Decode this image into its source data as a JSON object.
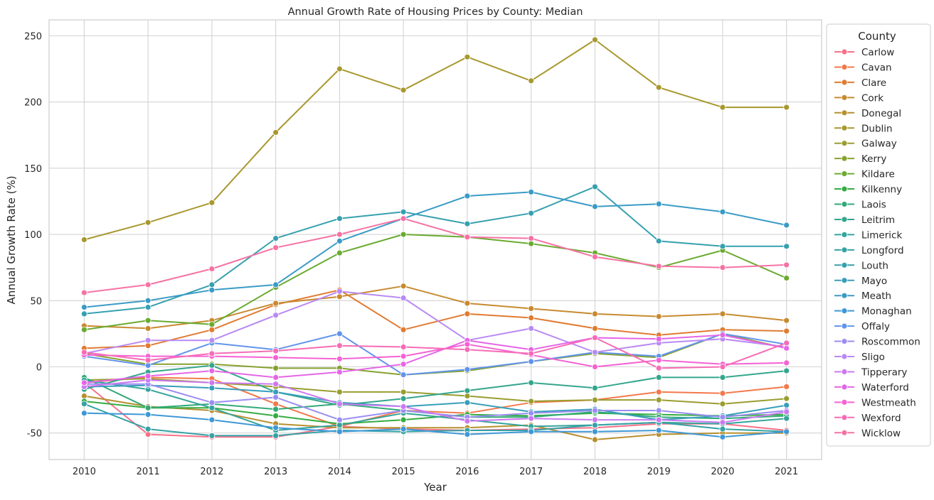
{
  "chart_data": {
    "type": "line",
    "title": "Annual Growth Rate of Housing Prices by County: Median",
    "xlabel": "Year",
    "ylabel": "Annual Growth Rate (%)",
    "x": [
      2010,
      2011,
      2012,
      2013,
      2014,
      2015,
      2016,
      2017,
      2018,
      2019,
      2020,
      2021
    ],
    "xlim": [
      2009.45,
      2021.55
    ],
    "ylim": [
      -70,
      262
    ],
    "yticks": [
      -50,
      0,
      50,
      100,
      150,
      200,
      250
    ],
    "grid": true,
    "legend": {
      "title": "County",
      "placement": "outside-right"
    },
    "series": [
      {
        "name": "Carlow",
        "color": "#f77189",
        "values": [
          -12,
          -51,
          -53,
          -53,
          -45,
          -47,
          -48,
          -47,
          -46,
          -43,
          -43,
          -48
        ]
      },
      {
        "name": "Cavan",
        "color": "#f3794b",
        "values": [
          -12,
          -8,
          -9,
          -28,
          -45,
          -33,
          -35,
          -27,
          -25,
          -19,
          -20,
          -15
        ]
      },
      {
        "name": "Clare",
        "color": "#e07b32",
        "values": [
          14,
          16,
          28,
          47,
          58,
          28,
          40,
          37,
          29,
          24,
          28,
          27
        ]
      },
      {
        "name": "Cork",
        "color": "#c88a30",
        "values": [
          31,
          29,
          35,
          48,
          53,
          61,
          48,
          44,
          40,
          38,
          40,
          35
        ]
      },
      {
        "name": "Donegal",
        "color": "#b7902f",
        "values": [
          -22,
          -30,
          -33,
          -43,
          -46,
          -46,
          -46,
          -44,
          -55,
          -51,
          -50,
          -50
        ]
      },
      {
        "name": "Dublin",
        "color": "#a8982f",
        "values": [
          96,
          109,
          124,
          177,
          225,
          209,
          234,
          216,
          247,
          211,
          196,
          196
        ]
      },
      {
        "name": "Galway",
        "color": "#9a9d30",
        "values": [
          -10,
          -9,
          -12,
          -15,
          -19,
          -19,
          -22,
          -26,
          -25,
          -25,
          -28,
          -24
        ]
      },
      {
        "name": "Kerry",
        "color": "#86a230",
        "values": [
          10,
          2,
          2,
          -1,
          -1,
          -6,
          -3,
          4,
          10,
          7,
          25,
          14
        ]
      },
      {
        "name": "Kildare",
        "color": "#6aab31",
        "values": [
          28,
          35,
          32,
          60,
          86,
          100,
          98,
          93,
          86,
          75,
          88,
          67
        ]
      },
      {
        "name": "Kilkenny",
        "color": "#35ac42",
        "values": [
          -26,
          -31,
          -31,
          -37,
          -43,
          -40,
          -36,
          -37,
          -35,
          -36,
          -37,
          -36
        ]
      },
      {
        "name": "Laois",
        "color": "#33a978",
        "values": [
          -8,
          -31,
          -28,
          -32,
          -28,
          -33,
          -38,
          -38,
          -34,
          -38,
          -39,
          -37
        ]
      },
      {
        "name": "Leitrim",
        "color": "#34a68d",
        "values": [
          -17,
          -4,
          1,
          -19,
          -29,
          -24,
          -18,
          -12,
          -16,
          -8,
          -8,
          -3
        ]
      },
      {
        "name": "Limerick",
        "color": "#35a49b",
        "values": [
          -10,
          -17,
          -31,
          -48,
          -44,
          -35,
          -40,
          -45,
          -44,
          -42,
          -43,
          -39
        ]
      },
      {
        "name": "Longford",
        "color": "#36a2a6",
        "values": [
          -28,
          -47,
          -52,
          -52,
          -48,
          -49,
          -48,
          -48,
          -44,
          -42,
          -47,
          -49
        ]
      },
      {
        "name": "Louth",
        "color": "#36a0af",
        "values": [
          40,
          45,
          62,
          97,
          112,
          117,
          108,
          116,
          136,
          95,
          91,
          91
        ]
      },
      {
        "name": "Mayo",
        "color": "#389eba",
        "values": [
          -15,
          -14,
          -16,
          -19,
          -27,
          -30,
          -27,
          -34,
          -32,
          -40,
          -37,
          -29
        ]
      },
      {
        "name": "Meath",
        "color": "#3a9bc6",
        "values": [
          45,
          50,
          58,
          62,
          95,
          112,
          129,
          132,
          121,
          123,
          117,
          107
        ]
      },
      {
        "name": "Monaghan",
        "color": "#3e98d6",
        "values": [
          -35,
          -36,
          -40,
          -46,
          -49,
          -47,
          -51,
          -49,
          -49,
          -48,
          -53,
          -49
        ]
      },
      {
        "name": "Offaly",
        "color": "#6294ec",
        "values": [
          8,
          1,
          18,
          13,
          25,
          -6,
          -2,
          4,
          11,
          8,
          25,
          17
        ]
      },
      {
        "name": "Roscommon",
        "color": "#9b8df3",
        "values": [
          -13,
          -13,
          -27,
          -23,
          -40,
          -33,
          -38,
          -35,
          -33,
          -33,
          -38,
          -33
        ]
      },
      {
        "name": "Sligo",
        "color": "#b98af3",
        "values": [
          10,
          20,
          20,
          39,
          57,
          52,
          20,
          29,
          11,
          18,
          21,
          15
        ]
      },
      {
        "name": "Tipperary",
        "color": "#cc79f0",
        "values": [
          -15,
          -10,
          -12,
          -13,
          -28,
          -30,
          -41,
          -39,
          -40,
          -40,
          -42,
          -34
        ]
      },
      {
        "name": "Waterford",
        "color": "#e566e6",
        "values": [
          -12,
          -7,
          -3,
          -8,
          -4,
          2,
          20,
          13,
          22,
          21,
          24,
          14
        ]
      },
      {
        "name": "Westmeath",
        "color": "#f562d4",
        "values": [
          9,
          8,
          8,
          7,
          6,
          8,
          17,
          9,
          0,
          5,
          2,
          3
        ]
      },
      {
        "name": "Wexford",
        "color": "#f66cb6",
        "values": [
          11,
          5,
          10,
          12,
          16,
          15,
          13,
          10,
          22,
          -1,
          0,
          18
        ]
      },
      {
        "name": "Wicklow",
        "color": "#f672a4",
        "values": [
          56,
          62,
          74,
          90,
          100,
          112,
          98,
          97,
          83,
          76,
          75,
          77
        ]
      }
    ]
  }
}
